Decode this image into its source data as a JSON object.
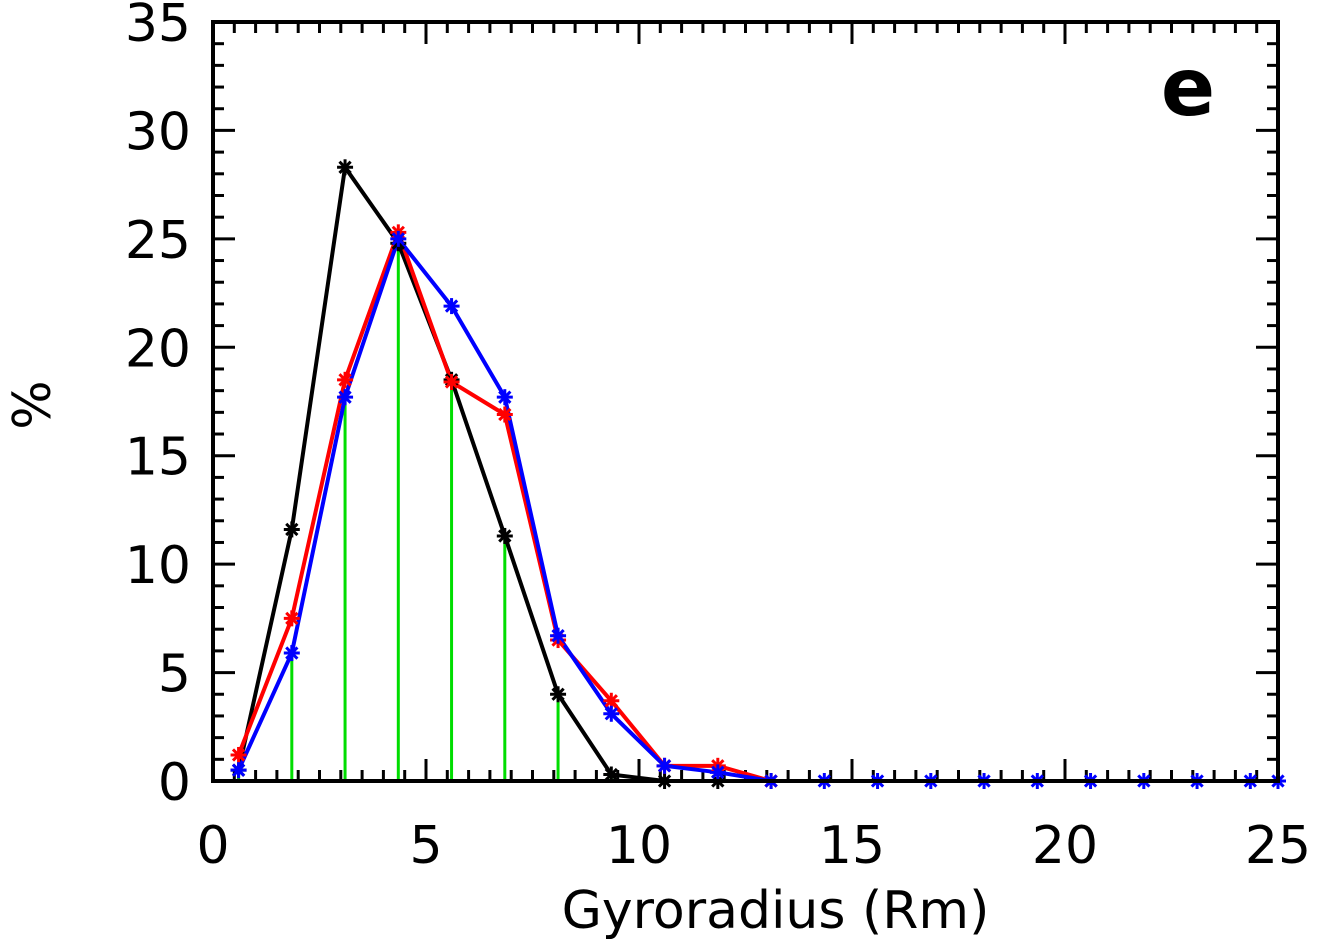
{
  "chart_data": {
    "type": "line",
    "title": "",
    "panel_label": "e",
    "xlabel": "Gyroradius (Rm)",
    "ylabel": "%",
    "xlim": [
      0,
      25
    ],
    "ylim": [
      0,
      35
    ],
    "x_tick_labels": [
      "0",
      "5",
      "10",
      "15",
      "20",
      "25"
    ],
    "y_tick_labels": [
      "0",
      "5",
      "10",
      "15",
      "20",
      "25",
      "30",
      "35"
    ],
    "x_tick_values": [
      0,
      5,
      10,
      15,
      20,
      25
    ],
    "y_tick_values": [
      0,
      5,
      10,
      15,
      20,
      25,
      30,
      35
    ],
    "grid": false,
    "legend": "none",
    "series": [
      {
        "color": "#000000",
        "marker": "asterisk",
        "x": [
          0.6,
          1.85,
          3.1,
          4.35,
          5.6,
          6.85,
          8.1,
          9.35,
          10.6,
          11.85,
          13.1
        ],
        "y": [
          0.5,
          11.6,
          28.3,
          24.8,
          18.5,
          11.3,
          4.0,
          0.3,
          0.0,
          0.0,
          0.0
        ]
      },
      {
        "color": "#ff0000",
        "marker": "asterisk",
        "x": [
          0.6,
          1.85,
          3.1,
          4.35,
          5.6,
          6.85,
          8.1,
          9.35,
          10.6,
          11.85,
          13.1
        ],
        "y": [
          1.2,
          7.5,
          18.5,
          25.3,
          18.4,
          16.9,
          6.5,
          3.7,
          0.7,
          0.7,
          0.0
        ]
      },
      {
        "color": "#0000ff",
        "marker": "asterisk",
        "x": [
          0.6,
          1.85,
          3.1,
          4.35,
          5.6,
          6.85,
          8.1,
          9.35,
          10.6,
          11.85,
          13.1,
          14.35,
          15.6,
          16.85,
          18.1,
          19.35,
          20.6,
          21.85,
          23.1,
          24.35,
          25.0
        ],
        "y": [
          0.5,
          5.9,
          17.7,
          25.0,
          21.9,
          17.7,
          6.7,
          3.1,
          0.7,
          0.4,
          0.0,
          0.0,
          0.0,
          0.0,
          0.0,
          0.0,
          0.0,
          0.0,
          0.0,
          0.0,
          0.0
        ]
      }
    ],
    "green_bars": {
      "color": "#00dd00",
      "x": [
        0.6,
        1.85,
        3.1,
        4.35,
        5.6,
        6.85,
        8.1,
        9.35
      ],
      "y": [
        0.5,
        5.9,
        17.7,
        25.0,
        18.4,
        11.3,
        4.0,
        0.3
      ]
    }
  }
}
